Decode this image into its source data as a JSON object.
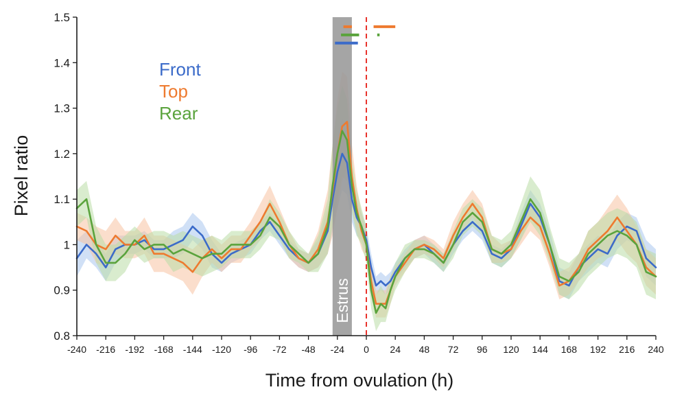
{
  "chart_data": {
    "type": "line",
    "xlabel": "Time from ovulation (h)",
    "ylabel": "Pixel ratio",
    "xlim": [
      -240,
      240
    ],
    "ylim": [
      0.8,
      1.5
    ],
    "xticks": [
      -240,
      -216,
      -192,
      -168,
      -144,
      -120,
      -96,
      -72,
      -48,
      -24,
      0,
      24,
      48,
      72,
      96,
      120,
      144,
      168,
      192,
      216,
      240
    ],
    "xtick_labels": [
      "-240",
      "-216",
      "-192",
      "-168",
      "-144",
      "-120",
      "-96",
      "-72",
      "-48",
      "-24",
      "0",
      "24",
      "48",
      "72",
      "96",
      "120",
      "144",
      "168",
      "192",
      "216",
      "240"
    ],
    "yticks": [
      0.8,
      0.9,
      1.0,
      1.1,
      1.2,
      1.3,
      1.4,
      1.5
    ],
    "ytick_labels": [
      "0.8",
      "0.9",
      "1",
      "1.1",
      "1.2",
      "1.3",
      "1.4",
      "1.5"
    ],
    "grid": false,
    "legend_position": "top-left",
    "estrus_band": {
      "label": "Estrus",
      "x_start": -28,
      "x_end": -12,
      "color": "#999999"
    },
    "ovulation_line": {
      "x": 0,
      "color": "#e8322b"
    },
    "significance_bars": [
      {
        "series": "Top",
        "x_start": -19,
        "x_end": -12,
        "y": 1.479
      },
      {
        "series": "Top",
        "x_start": 6,
        "x_end": 24,
        "y": 1.479
      },
      {
        "series": "Rear",
        "x_start": -21,
        "x_end": -6,
        "y": 1.461
      },
      {
        "series": "Rear",
        "x_start": 9,
        "x_end": 11,
        "y": 1.461
      },
      {
        "series": "Front",
        "x_start": -26,
        "x_end": -7,
        "y": 1.443
      }
    ],
    "series": [
      {
        "name": "Front",
        "color": "#3b6bc9",
        "band_color": "#a9c6ee",
        "x": [
          -240,
          -232,
          -224,
          -216,
          -208,
          -200,
          -192,
          -184,
          -176,
          -168,
          -160,
          -152,
          -144,
          -136,
          -128,
          -120,
          -112,
          -104,
          -96,
          -88,
          -80,
          -72,
          -64,
          -56,
          -48,
          -40,
          -32,
          -28,
          -24,
          -20,
          -16,
          -12,
          -8,
          -4,
          0,
          4,
          8,
          12,
          16,
          20,
          24,
          32,
          40,
          48,
          56,
          64,
          72,
          80,
          88,
          96,
          104,
          112,
          120,
          128,
          136,
          144,
          152,
          160,
          168,
          176,
          184,
          192,
          200,
          208,
          216,
          224,
          232,
          240
        ],
        "y": [
          0.97,
          1.0,
          0.98,
          0.95,
          0.99,
          1.0,
          1.0,
          1.01,
          0.99,
          0.99,
          1.0,
          1.01,
          1.04,
          1.02,
          0.98,
          0.96,
          0.98,
          0.99,
          1.0,
          1.03,
          1.05,
          1.02,
          0.99,
          0.97,
          0.96,
          0.98,
          1.03,
          1.1,
          1.16,
          1.2,
          1.18,
          1.1,
          1.06,
          1.04,
          1.01,
          0.95,
          0.91,
          0.92,
          0.91,
          0.92,
          0.94,
          0.97,
          0.99,
          1.0,
          0.98,
          0.96,
          1.0,
          1.03,
          1.05,
          1.03,
          0.98,
          0.97,
          0.99,
          1.04,
          1.09,
          1.06,
          1.0,
          0.92,
          0.91,
          0.95,
          0.97,
          0.99,
          0.98,
          1.02,
          1.04,
          1.03,
          0.97,
          0.95
        ],
        "err": [
          0.04,
          0.03,
          0.03,
          0.03,
          0.03,
          0.02,
          0.02,
          0.02,
          0.02,
          0.02,
          0.03,
          0.03,
          0.03,
          0.03,
          0.03,
          0.02,
          0.02,
          0.02,
          0.02,
          0.02,
          0.02,
          0.02,
          0.02,
          0.02,
          0.02,
          0.03,
          0.05,
          0.07,
          0.08,
          0.08,
          0.07,
          0.05,
          0.04,
          0.03,
          0.03,
          0.03,
          0.02,
          0.02,
          0.02,
          0.02,
          0.02,
          0.02,
          0.02,
          0.02,
          0.02,
          0.02,
          0.02,
          0.02,
          0.02,
          0.02,
          0.02,
          0.02,
          0.02,
          0.03,
          0.03,
          0.03,
          0.03,
          0.03,
          0.03,
          0.03,
          0.03,
          0.03,
          0.03,
          0.03,
          0.03,
          0.03,
          0.04,
          0.04
        ]
      },
      {
        "name": "Top",
        "color": "#ee7a2f",
        "band_color": "#f7c3a2",
        "x": [
          -240,
          -232,
          -224,
          -216,
          -208,
          -200,
          -192,
          -184,
          -176,
          -168,
          -160,
          -152,
          -144,
          -136,
          -128,
          -120,
          -112,
          -104,
          -96,
          -88,
          -80,
          -72,
          -64,
          -56,
          -48,
          -40,
          -32,
          -28,
          -24,
          -20,
          -16,
          -12,
          -8,
          -4,
          0,
          4,
          8,
          12,
          16,
          20,
          24,
          32,
          40,
          48,
          56,
          64,
          72,
          80,
          88,
          96,
          104,
          112,
          120,
          128,
          136,
          144,
          152,
          160,
          168,
          176,
          184,
          192,
          200,
          208,
          216,
          224,
          232,
          240
        ],
        "y": [
          1.04,
          1.03,
          1.0,
          0.99,
          1.02,
          1.0,
          1.0,
          1.02,
          0.98,
          0.98,
          0.97,
          0.96,
          0.94,
          0.97,
          0.99,
          0.97,
          0.99,
          0.99,
          1.02,
          1.05,
          1.09,
          1.05,
          1.0,
          0.97,
          0.96,
          0.99,
          1.05,
          1.12,
          1.2,
          1.26,
          1.27,
          1.15,
          1.08,
          1.03,
          1.0,
          0.92,
          0.87,
          0.87,
          0.87,
          0.9,
          0.93,
          0.96,
          0.99,
          1.0,
          0.99,
          0.97,
          1.02,
          1.06,
          1.09,
          1.06,
          0.99,
          0.98,
          0.99,
          1.03,
          1.06,
          1.04,
          0.98,
          0.91,
          0.92,
          0.95,
          0.99,
          1.01,
          1.03,
          1.06,
          1.03,
          1.0,
          0.95,
          0.93
        ],
        "err": [
          0.03,
          0.03,
          0.04,
          0.04,
          0.04,
          0.03,
          0.03,
          0.04,
          0.04,
          0.04,
          0.04,
          0.04,
          0.05,
          0.04,
          0.03,
          0.03,
          0.03,
          0.03,
          0.03,
          0.04,
          0.04,
          0.03,
          0.03,
          0.02,
          0.02,
          0.04,
          0.07,
          0.1,
          0.12,
          0.12,
          0.1,
          0.07,
          0.05,
          0.04,
          0.03,
          0.03,
          0.03,
          0.03,
          0.03,
          0.03,
          0.02,
          0.02,
          0.02,
          0.02,
          0.02,
          0.02,
          0.03,
          0.03,
          0.03,
          0.03,
          0.03,
          0.02,
          0.02,
          0.03,
          0.03,
          0.03,
          0.03,
          0.03,
          0.03,
          0.03,
          0.04,
          0.04,
          0.05,
          0.05,
          0.05,
          0.04,
          0.04,
          0.04
        ]
      },
      {
        "name": "Rear",
        "color": "#5aa33c",
        "band_color": "#b9dca6",
        "x": [
          -240,
          -232,
          -224,
          -216,
          -208,
          -200,
          -192,
          -184,
          -176,
          -168,
          -160,
          -152,
          -144,
          -136,
          -128,
          -120,
          -112,
          -104,
          -96,
          -88,
          -80,
          -72,
          -64,
          -56,
          -48,
          -40,
          -32,
          -28,
          -24,
          -20,
          -16,
          -12,
          -8,
          -4,
          0,
          4,
          8,
          12,
          16,
          20,
          24,
          32,
          40,
          48,
          56,
          64,
          72,
          80,
          88,
          96,
          104,
          112,
          120,
          128,
          136,
          144,
          152,
          160,
          168,
          176,
          184,
          192,
          200,
          208,
          216,
          224,
          232,
          240
        ],
        "y": [
          1.08,
          1.1,
          1.0,
          0.96,
          0.96,
          0.98,
          1.01,
          0.99,
          1.0,
          1.0,
          0.98,
          0.99,
          0.98,
          0.97,
          0.98,
          0.98,
          1.0,
          1.0,
          1.0,
          1.02,
          1.06,
          1.04,
          1.0,
          0.98,
          0.96,
          0.98,
          1.04,
          1.13,
          1.2,
          1.25,
          1.23,
          1.13,
          1.07,
          1.04,
          1.0,
          0.9,
          0.85,
          0.87,
          0.86,
          0.9,
          0.93,
          0.97,
          0.99,
          0.99,
          0.98,
          0.96,
          1.0,
          1.05,
          1.07,
          1.05,
          0.99,
          0.98,
          1.0,
          1.05,
          1.1,
          1.07,
          1.0,
          0.93,
          0.92,
          0.94,
          0.98,
          1.0,
          1.02,
          1.03,
          1.02,
          1.0,
          0.94,
          0.93
        ],
        "err": [
          0.04,
          0.04,
          0.04,
          0.04,
          0.04,
          0.04,
          0.03,
          0.03,
          0.03,
          0.03,
          0.04,
          0.04,
          0.04,
          0.04,
          0.04,
          0.03,
          0.03,
          0.03,
          0.03,
          0.03,
          0.04,
          0.03,
          0.03,
          0.02,
          0.02,
          0.04,
          0.06,
          0.09,
          0.1,
          0.1,
          0.09,
          0.06,
          0.05,
          0.04,
          0.04,
          0.04,
          0.04,
          0.04,
          0.03,
          0.03,
          0.03,
          0.03,
          0.02,
          0.02,
          0.02,
          0.02,
          0.03,
          0.03,
          0.03,
          0.03,
          0.03,
          0.03,
          0.03,
          0.04,
          0.05,
          0.05,
          0.04,
          0.04,
          0.04,
          0.04,
          0.05,
          0.05,
          0.05,
          0.05,
          0.05,
          0.05,
          0.05,
          0.05
        ]
      }
    ]
  }
}
